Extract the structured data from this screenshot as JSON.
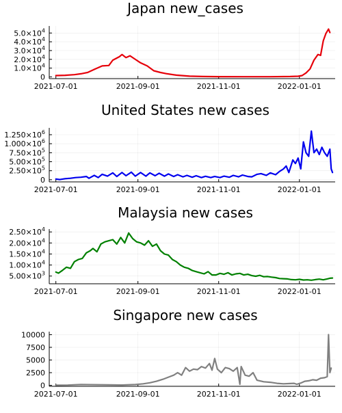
{
  "x_ticks": [
    "2021-07-01",
    "2021-09-01",
    "2021-11-01",
    "2022-01-01"
  ],
  "chart_data": [
    {
      "type": "line",
      "title": "Japan new_cases",
      "color": "#e6000a",
      "xlim": [
        "2021-06-26",
        "2022-01-28"
      ],
      "ylim": [
        -2000,
        58000
      ],
      "y_ticks": [
        {
          "value": 0,
          "base": "0",
          "exp": ""
        },
        {
          "value": 10000,
          "base": "1.0×10",
          "exp": "4"
        },
        {
          "value": 20000,
          "base": "2.0×10",
          "exp": "4"
        },
        {
          "value": 30000,
          "base": "3.0×10",
          "exp": "4"
        },
        {
          "value": 40000,
          "base": "4.0×10",
          "exp": "4"
        },
        {
          "value": 50000,
          "base": "5.0×10",
          "exp": "4"
        }
      ],
      "points": [
        [
          "2021-07-01",
          1500
        ],
        [
          "2021-07-08",
          1800
        ],
        [
          "2021-07-15",
          2500
        ],
        [
          "2021-07-20",
          3500
        ],
        [
          "2021-07-25",
          5000
        ],
        [
          "2021-07-30",
          8500
        ],
        [
          "2021-08-05",
          12500
        ],
        [
          "2021-08-10",
          13000
        ],
        [
          "2021-08-13",
          19000
        ],
        [
          "2021-08-18",
          23000
        ],
        [
          "2021-08-20",
          25500
        ],
        [
          "2021-08-23",
          22000
        ],
        [
          "2021-08-26",
          24000
        ],
        [
          "2021-08-29",
          21000
        ],
        [
          "2021-09-03",
          16000
        ],
        [
          "2021-09-08",
          12500
        ],
        [
          "2021-09-13",
          7000
        ],
        [
          "2021-09-18",
          5000
        ],
        [
          "2021-09-23",
          3500
        ],
        [
          "2021-09-30",
          2000
        ],
        [
          "2021-10-10",
          800
        ],
        [
          "2021-10-20",
          400
        ],
        [
          "2021-11-01",
          250
        ],
        [
          "2021-11-20",
          150
        ],
        [
          "2021-12-10",
          200
        ],
        [
          "2021-12-25",
          450
        ],
        [
          "2021-12-31",
          700
        ],
        [
          "2022-01-03",
          1500
        ],
        [
          "2022-01-06",
          4500
        ],
        [
          "2022-01-09",
          9000
        ],
        [
          "2022-01-12",
          19000
        ],
        [
          "2022-01-15",
          25500
        ],
        [
          "2022-01-17",
          24500
        ],
        [
          "2022-01-19",
          41000
        ],
        [
          "2022-01-21",
          49500
        ],
        [
          "2022-01-23",
          54500
        ],
        [
          "2022-01-24",
          50500
        ]
      ]
    },
    {
      "type": "line",
      "title": "United States new cases",
      "color": "#0000ee",
      "xlim": [
        "2021-06-26",
        "2022-01-28"
      ],
      "ylim": [
        -60000,
        1440000
      ],
      "y_ticks": [
        {
          "value": 0,
          "base": "0",
          "exp": ""
        },
        {
          "value": 250000,
          "base": "2.50×10",
          "exp": "5"
        },
        {
          "value": 500000,
          "base": "5.00×10",
          "exp": "5"
        },
        {
          "value": 750000,
          "base": "7.50×10",
          "exp": "5"
        },
        {
          "value": 1000000,
          "base": "1.000×10",
          "exp": "6"
        },
        {
          "value": 1250000,
          "base": "1.250×10",
          "exp": "6"
        }
      ],
      "points": [
        [
          "2021-07-01",
          20000
        ],
        [
          "2021-07-04",
          5000
        ],
        [
          "2021-07-08",
          30000
        ],
        [
          "2021-07-12",
          40000
        ],
        [
          "2021-07-16",
          60000
        ],
        [
          "2021-07-20",
          70000
        ],
        [
          "2021-07-24",
          90000
        ],
        [
          "2021-07-26",
          40000
        ],
        [
          "2021-07-30",
          120000
        ],
        [
          "2021-08-02",
          60000
        ],
        [
          "2021-08-05",
          150000
        ],
        [
          "2021-08-09",
          100000
        ],
        [
          "2021-08-13",
          190000
        ],
        [
          "2021-08-16",
          90000
        ],
        [
          "2021-08-20",
          200000
        ],
        [
          "2021-08-23",
          110000
        ],
        [
          "2021-08-27",
          210000
        ],
        [
          "2021-08-30",
          100000
        ],
        [
          "2021-09-03",
          200000
        ],
        [
          "2021-09-07",
          100000
        ],
        [
          "2021-09-10",
          190000
        ],
        [
          "2021-09-14",
          110000
        ],
        [
          "2021-09-17",
          180000
        ],
        [
          "2021-09-21",
          100000
        ],
        [
          "2021-09-24",
          160000
        ],
        [
          "2021-09-28",
          90000
        ],
        [
          "2021-10-01",
          140000
        ],
        [
          "2021-10-05",
          80000
        ],
        [
          "2021-10-08",
          120000
        ],
        [
          "2021-10-12",
          70000
        ],
        [
          "2021-10-15",
          110000
        ],
        [
          "2021-10-19",
          60000
        ],
        [
          "2021-10-22",
          95000
        ],
        [
          "2021-10-26",
          60000
        ],
        [
          "2021-10-29",
          90000
        ],
        [
          "2021-11-02",
          60000
        ],
        [
          "2021-11-05",
          100000
        ],
        [
          "2021-11-09",
          70000
        ],
        [
          "2021-11-12",
          120000
        ],
        [
          "2021-11-16",
          80000
        ],
        [
          "2021-11-19",
          130000
        ],
        [
          "2021-11-23",
          90000
        ],
        [
          "2021-11-26",
          80000
        ],
        [
          "2021-11-30",
          150000
        ],
        [
          "2021-12-03",
          170000
        ],
        [
          "2021-12-07",
          120000
        ],
        [
          "2021-12-10",
          190000
        ],
        [
          "2021-12-14",
          140000
        ],
        [
          "2021-12-17",
          230000
        ],
        [
          "2021-12-20",
          300000
        ],
        [
          "2021-12-22",
          380000
        ],
        [
          "2021-12-24",
          200000
        ],
        [
          "2021-12-27",
          550000
        ],
        [
          "2021-12-29",
          450000
        ],
        [
          "2021-12-31",
          600000
        ],
        [
          "2022-01-02",
          300000
        ],
        [
          "2022-01-04",
          1050000
        ],
        [
          "2022-01-06",
          750000
        ],
        [
          "2022-01-08",
          650000
        ],
        [
          "2022-01-10",
          1350000
        ],
        [
          "2022-01-12",
          750000
        ],
        [
          "2022-01-14",
          850000
        ],
        [
          "2022-01-16",
          700000
        ],
        [
          "2022-01-18",
          900000
        ],
        [
          "2022-01-20",
          750000
        ],
        [
          "2022-01-22",
          650000
        ],
        [
          "2022-01-24",
          850000
        ],
        [
          "2022-01-25",
          300000
        ],
        [
          "2022-01-26",
          200000
        ]
      ]
    },
    {
      "type": "line",
      "title": "Malaysia new cases",
      "color": "#008000",
      "xlim": [
        "2021-06-26",
        "2022-01-28"
      ],
      "ylim": [
        1500,
        26300
      ],
      "y_ticks": [
        {
          "value": 5000,
          "base": "5.00×10",
          "exp": "3"
        },
        {
          "value": 10000,
          "base": "1.00×10",
          "exp": "4"
        },
        {
          "value": 15000,
          "base": "1.50×10",
          "exp": "4"
        },
        {
          "value": 20000,
          "base": "2.00×10",
          "exp": "4"
        },
        {
          "value": 25000,
          "base": "2.50×10",
          "exp": "4"
        }
      ],
      "points": [
        [
          "2021-07-01",
          6800
        ],
        [
          "2021-07-03",
          6300
        ],
        [
          "2021-07-06",
          7600
        ],
        [
          "2021-07-09",
          9000
        ],
        [
          "2021-07-12",
          8500
        ],
        [
          "2021-07-15",
          11500
        ],
        [
          "2021-07-18",
          12500
        ],
        [
          "2021-07-21",
          13000
        ],
        [
          "2021-07-24",
          15500
        ],
        [
          "2021-07-27",
          16500
        ],
        [
          "2021-07-29",
          17500
        ],
        [
          "2021-08-01",
          16000
        ],
        [
          "2021-08-04",
          19500
        ],
        [
          "2021-08-07",
          20500
        ],
        [
          "2021-08-10",
          21000
        ],
        [
          "2021-08-13",
          21500
        ],
        [
          "2021-08-16",
          19500
        ],
        [
          "2021-08-19",
          22500
        ],
        [
          "2021-08-22",
          20000
        ],
        [
          "2021-08-25",
          24500
        ],
        [
          "2021-08-28",
          22000
        ],
        [
          "2021-08-31",
          20500
        ],
        [
          "2021-09-03",
          20000
        ],
        [
          "2021-09-06",
          19000
        ],
        [
          "2021-09-09",
          21000
        ],
        [
          "2021-09-12",
          18500
        ],
        [
          "2021-09-15",
          19500
        ],
        [
          "2021-09-18",
          16500
        ],
        [
          "2021-09-21",
          15000
        ],
        [
          "2021-09-24",
          14500
        ],
        [
          "2021-09-27",
          12500
        ],
        [
          "2021-09-30",
          11500
        ],
        [
          "2021-10-03",
          10000
        ],
        [
          "2021-10-06",
          9000
        ],
        [
          "2021-10-09",
          8500
        ],
        [
          "2021-10-12",
          7500
        ],
        [
          "2021-10-15",
          7000
        ],
        [
          "2021-10-18",
          6500
        ],
        [
          "2021-10-21",
          6000
        ],
        [
          "2021-10-24",
          7000
        ],
        [
          "2021-10-27",
          5500
        ],
        [
          "2021-10-30",
          5500
        ],
        [
          "2021-11-02",
          6200
        ],
        [
          "2021-11-05",
          5800
        ],
        [
          "2021-11-08",
          6500
        ],
        [
          "2021-11-11",
          5500
        ],
        [
          "2021-11-14",
          6000
        ],
        [
          "2021-11-17",
          6200
        ],
        [
          "2021-11-20",
          5500
        ],
        [
          "2021-11-23",
          5800
        ],
        [
          "2021-11-26",
          5200
        ],
        [
          "2021-11-29",
          4900
        ],
        [
          "2021-12-02",
          5300
        ],
        [
          "2021-12-05",
          4700
        ],
        [
          "2021-12-08",
          4800
        ],
        [
          "2021-12-11",
          4500
        ],
        [
          "2021-12-14",
          4300
        ],
        [
          "2021-12-17",
          3900
        ],
        [
          "2021-12-20",
          3800
        ],
        [
          "2021-12-23",
          3700
        ],
        [
          "2021-12-26",
          3400
        ],
        [
          "2021-12-29",
          3300
        ],
        [
          "2022-01-01",
          3500
        ],
        [
          "2022-01-04",
          3200
        ],
        [
          "2022-01-07",
          3300
        ],
        [
          "2022-01-10",
          3100
        ],
        [
          "2022-01-13",
          3400
        ],
        [
          "2022-01-16",
          3600
        ],
        [
          "2022-01-19",
          3300
        ],
        [
          "2022-01-22",
          3700
        ],
        [
          "2022-01-24",
          4000
        ],
        [
          "2022-01-26",
          4100
        ]
      ]
    },
    {
      "type": "line",
      "title": "Singapore new cases",
      "color": "#808080",
      "xlim": [
        "2021-06-26",
        "2022-01-28"
      ],
      "ylim": [
        -200,
        10600
      ],
      "y_ticks": [
        {
          "value": 0,
          "base": "0",
          "exp": ""
        },
        {
          "value": 2500,
          "base": "2500",
          "exp": ""
        },
        {
          "value": 5000,
          "base": "5000",
          "exp": ""
        },
        {
          "value": 7500,
          "base": "7500",
          "exp": ""
        },
        {
          "value": 10000,
          "base": "10000",
          "exp": ""
        }
      ],
      "points": [
        [
          "2021-07-01",
          20
        ],
        [
          "2021-07-10",
          40
        ],
        [
          "2021-07-20",
          150
        ],
        [
          "2021-07-30",
          120
        ],
        [
          "2021-08-10",
          80
        ],
        [
          "2021-08-20",
          60
        ],
        [
          "2021-08-30",
          150
        ],
        [
          "2021-09-05",
          300
        ],
        [
          "2021-09-10",
          500
        ],
        [
          "2021-09-15",
          800
        ],
        [
          "2021-09-20",
          1200
        ],
        [
          "2021-09-25",
          1700
        ],
        [
          "2021-09-28",
          2000
        ],
        [
          "2021-10-01",
          2500
        ],
        [
          "2021-10-04",
          2000
        ],
        [
          "2021-10-07",
          3500
        ],
        [
          "2021-10-10",
          2800
        ],
        [
          "2021-10-13",
          3200
        ],
        [
          "2021-10-16",
          3100
        ],
        [
          "2021-10-19",
          3700
        ],
        [
          "2021-10-22",
          3400
        ],
        [
          "2021-10-25",
          4300
        ],
        [
          "2021-10-27",
          3000
        ],
        [
          "2021-10-29",
          5300
        ],
        [
          "2021-10-31",
          3200
        ],
        [
          "2021-11-03",
          2500
        ],
        [
          "2021-11-06",
          3500
        ],
        [
          "2021-11-09",
          3300
        ],
        [
          "2021-11-12",
          2800
        ],
        [
          "2021-11-15",
          3500
        ],
        [
          "2021-11-17",
          200
        ],
        [
          "2021-11-18",
          3700
        ],
        [
          "2021-11-21",
          2000
        ],
        [
          "2021-11-24",
          1800
        ],
        [
          "2021-11-27",
          2500
        ],
        [
          "2021-11-30",
          1000
        ],
        [
          "2021-12-05",
          700
        ],
        [
          "2021-12-10",
          600
        ],
        [
          "2021-12-15",
          400
        ],
        [
          "2021-12-20",
          300
        ],
        [
          "2021-12-25",
          350
        ],
        [
          "2021-12-28",
          400
        ],
        [
          "2021-12-30",
          200
        ],
        [
          "2022-01-02",
          450
        ],
        [
          "2022-01-05",
          800
        ],
        [
          "2022-01-08",
          900
        ],
        [
          "2022-01-11",
          1100
        ],
        [
          "2022-01-14",
          1000
        ],
        [
          "2022-01-17",
          1400
        ],
        [
          "2022-01-20",
          1500
        ],
        [
          "2022-01-22",
          1700
        ],
        [
          "2022-01-23",
          10000
        ],
        [
          "2022-01-24",
          2500
        ],
        [
          "2022-01-25",
          3400
        ]
      ]
    }
  ]
}
